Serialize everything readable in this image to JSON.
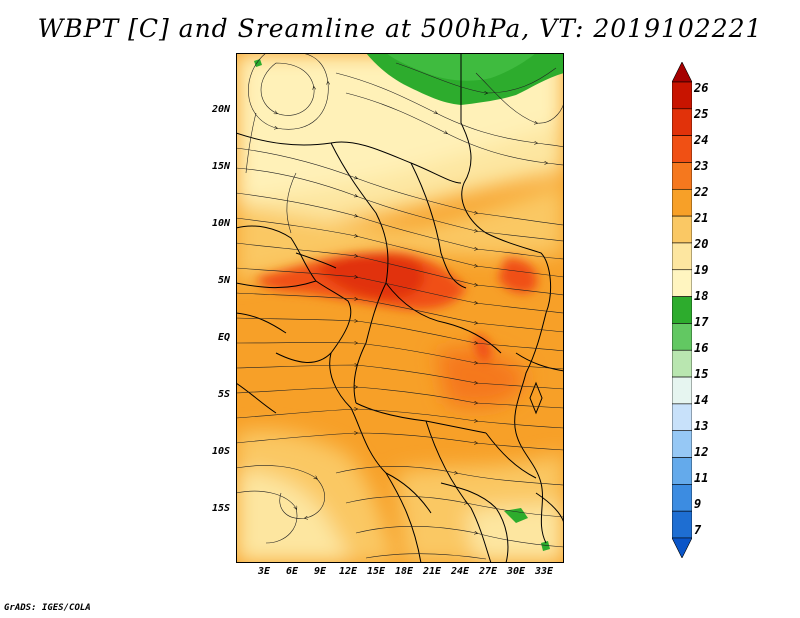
{
  "title": "WBPT [C] and Sreamline at 500hPa, VT: 2019102221",
  "credit": "GrADS: IGES/COLA",
  "map": {
    "projection": "lat-lon",
    "lat_range": [
      "20N+",
      "20S"
    ],
    "lon_range": [
      "0E",
      "35E"
    ],
    "y_ticks": [
      "20N",
      "15N",
      "10N",
      "5N",
      "EQ",
      "5S",
      "10S",
      "15S"
    ],
    "x_ticks": [
      "3E",
      "6E",
      "9E",
      "12E",
      "15E",
      "18E",
      "21E",
      "24E",
      "27E",
      "30E",
      "33E"
    ]
  },
  "colorbar": {
    "labels": [
      "26",
      "25",
      "24",
      "23",
      "22",
      "21",
      "20",
      "19",
      "18",
      "17",
      "16",
      "15",
      "14",
      "13",
      "12",
      "11",
      "9",
      "7"
    ],
    "colors": [
      "#a50000",
      "#c81400",
      "#e1320a",
      "#f05014",
      "#f5781e",
      "#f7a028",
      "#fac864",
      "#fde6a0",
      "#fff5c0",
      "#2dac2d",
      "#62c862",
      "#b9e6b0",
      "#e6f5f0",
      "#c8e1fa",
      "#96c8f5",
      "#64aaeb",
      "#3c8ce1",
      "#1e6ed2",
      "#0a55c8"
    ]
  }
}
